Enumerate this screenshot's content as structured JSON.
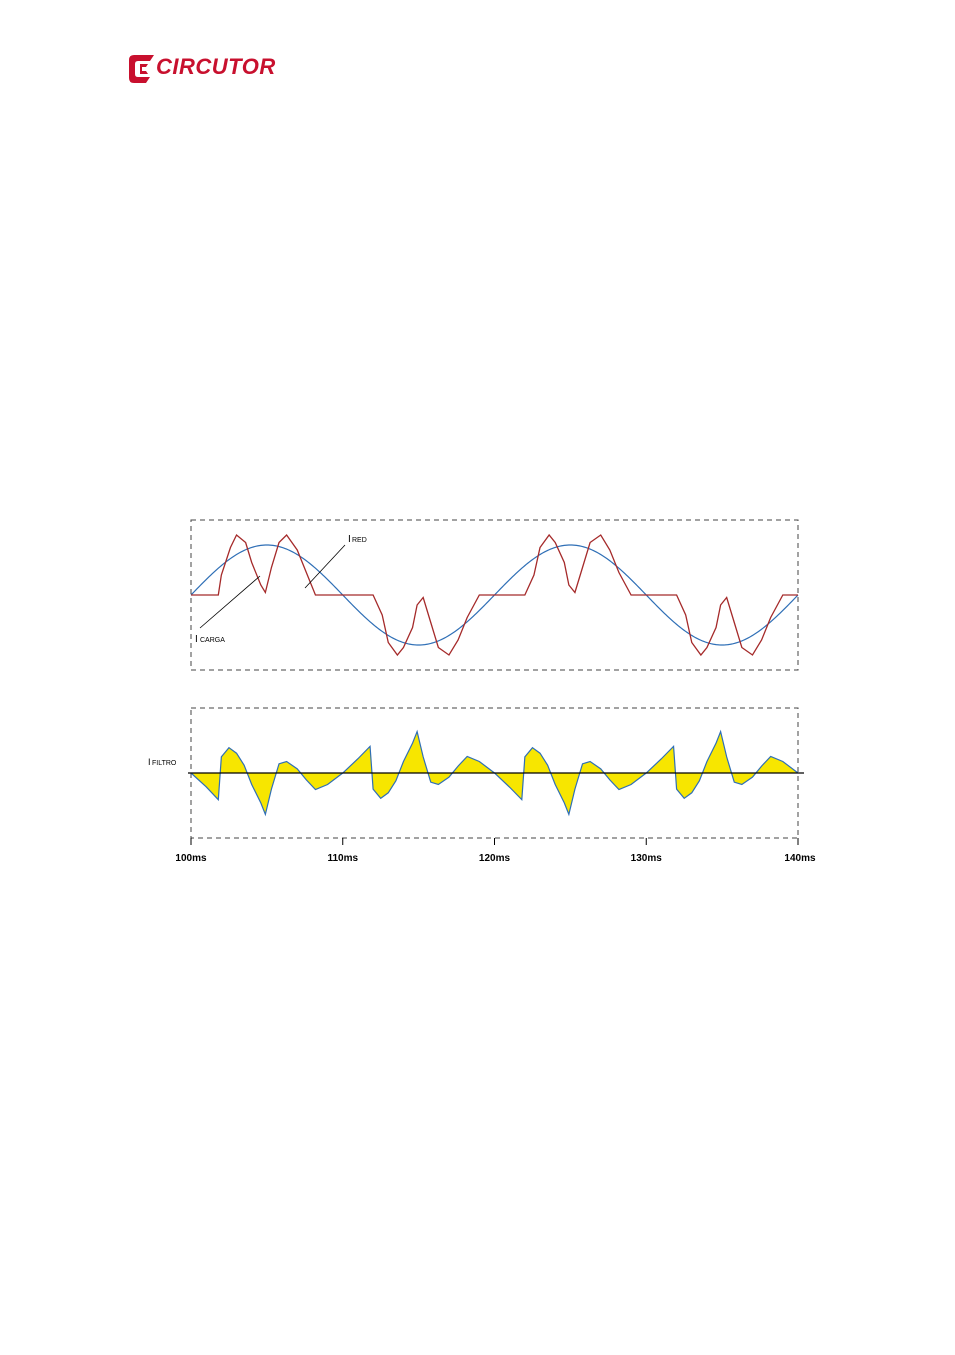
{
  "header": {
    "brand": "CIRCUTOR",
    "brand_color": "#c8102e"
  },
  "chart_data": [
    {
      "type": "line",
      "xlabel": "",
      "ylabel": "",
      "xlim": [
        100,
        140
      ],
      "ylim": [
        -1.2,
        1.2
      ],
      "grid": false,
      "series": [
        {
          "name": "I RED",
          "color": "#2f6fb6",
          "x": [
            100,
            101,
            102,
            103,
            104,
            105,
            106,
            107,
            108,
            109,
            110,
            111,
            112,
            113,
            114,
            115,
            116,
            117,
            118,
            119,
            120,
            121,
            122,
            123,
            124,
            125,
            126,
            127,
            128,
            129,
            130,
            131,
            132,
            133,
            134,
            135,
            136,
            137,
            138,
            139,
            140
          ],
          "values": [
            0,
            0.31,
            0.59,
            0.81,
            0.95,
            1,
            0.95,
            0.81,
            0.59,
            0.31,
            0,
            -0.31,
            -0.59,
            -0.81,
            -0.95,
            -1,
            -0.95,
            -0.81,
            -0.59,
            -0.31,
            0,
            0.31,
            0.59,
            0.81,
            0.95,
            1,
            0.95,
            0.81,
            0.59,
            0.31,
            0,
            -0.31,
            -0.59,
            -0.81,
            -0.95,
            -1,
            -0.95,
            -0.81,
            -0.59,
            -0.31,
            0
          ]
        },
        {
          "name": "I CARGA",
          "color": "#a52a2a",
          "x": [
            100,
            101,
            101.8,
            102,
            102.6,
            103,
            103.6,
            104,
            104.6,
            104.9,
            105.3,
            105.8,
            106.3,
            107,
            107.6,
            108.2,
            109,
            110,
            111,
            111.8,
            112,
            112.6,
            113,
            113.6,
            114,
            114.6,
            114.9,
            115.3,
            115.8,
            116.3,
            117,
            117.6,
            118.2,
            119,
            120,
            121,
            121.8,
            122,
            122.6,
            123,
            123.6,
            124,
            124.6,
            124.9,
            125.3,
            125.8,
            126.3,
            127,
            127.6,
            128.2,
            129,
            130,
            131,
            131.8,
            132,
            132.6,
            133,
            133.6,
            134,
            134.6,
            134.9,
            135.3,
            135.8,
            136.3,
            137,
            137.6,
            138.2,
            139,
            140
          ],
          "values": [
            0,
            0,
            0,
            0.4,
            0.95,
            1.2,
            1.05,
            0.65,
            0.2,
            0.05,
            0.55,
            1.05,
            1.2,
            0.9,
            0.45,
            0,
            0,
            0,
            0,
            0,
            0,
            -0.4,
            -0.95,
            -1.2,
            -1.05,
            -0.65,
            -0.2,
            -0.05,
            -0.55,
            -1.05,
            -1.2,
            -0.9,
            -0.45,
            0,
            0,
            0,
            0,
            0,
            0.4,
            0.95,
            1.2,
            1.05,
            0.65,
            0.2,
            0.05,
            0.55,
            1.05,
            1.2,
            0.9,
            0.45,
            0,
            0,
            0,
            0,
            0,
            -0.4,
            -0.95,
            -1.2,
            -1.05,
            -0.65,
            -0.2,
            -0.05,
            -0.55,
            -1.05,
            -1.2,
            -0.9,
            -0.45,
            0,
            0
          ]
        }
      ],
      "annotations": [
        {
          "text": "I",
          "subtext": "RED"
        },
        {
          "text": "I",
          "subtext": "CARGA"
        }
      ]
    },
    {
      "type": "area",
      "xlabel": "",
      "ylabel": "",
      "xlim": [
        100,
        140
      ],
      "ylim": [
        -1,
        1
      ],
      "grid": false,
      "fill_color": "#f7e600",
      "outline_color": "#2f6fb6",
      "series": [
        {
          "name": "I FILTRO",
          "x": [
            100,
            101,
            101.8,
            102,
            102.5,
            103,
            103.5,
            104,
            104.6,
            104.9,
            105.3,
            105.8,
            106.3,
            107,
            107.6,
            108.2,
            109,
            110,
            111,
            111.8,
            112,
            112.5,
            113,
            113.5,
            114,
            114.6,
            114.9,
            115.3,
            115.8,
            116.3,
            117,
            117.6,
            118.2,
            119,
            120,
            121,
            121.8,
            122,
            122.5,
            123,
            123.5,
            124,
            124.6,
            124.9,
            125.3,
            125.8,
            126.3,
            127,
            127.6,
            128.2,
            129,
            130,
            131,
            131.8,
            132,
            132.5,
            133,
            133.5,
            134,
            134.6,
            134.9,
            135.3,
            135.8,
            136.3,
            137,
            137.6,
            138.2,
            139,
            140
          ],
          "values": [
            0,
            -0.3,
            -0.58,
            0.35,
            0.55,
            0.43,
            0.17,
            -0.25,
            -0.65,
            -0.9,
            -0.35,
            0.2,
            0.25,
            0.09,
            -0.15,
            -0.36,
            -0.25,
            0,
            0.31,
            0.58,
            -0.35,
            -0.55,
            -0.43,
            -0.17,
            0.25,
            0.65,
            0.9,
            0.35,
            -0.2,
            -0.25,
            -0.09,
            0.15,
            0.36,
            0.25,
            0,
            -0.31,
            -0.58,
            0.35,
            0.55,
            0.43,
            0.17,
            -0.25,
            -0.65,
            -0.9,
            -0.35,
            0.2,
            0.25,
            0.09,
            -0.15,
            -0.36,
            -0.25,
            0,
            0.31,
            0.58,
            -0.35,
            -0.55,
            -0.43,
            -0.17,
            0.25,
            0.65,
            0.9,
            0.35,
            -0.2,
            -0.25,
            -0.09,
            0.15,
            0.36,
            0.25,
            0
          ]
        }
      ],
      "annotations": [
        {
          "text": "I",
          "subtext": "FILTRO"
        }
      ],
      "x_tick_labels": [
        "100ms",
        "110ms",
        "120ms",
        "130ms",
        "140ms"
      ],
      "x_ticks": [
        100,
        110,
        120,
        130,
        140
      ]
    }
  ]
}
